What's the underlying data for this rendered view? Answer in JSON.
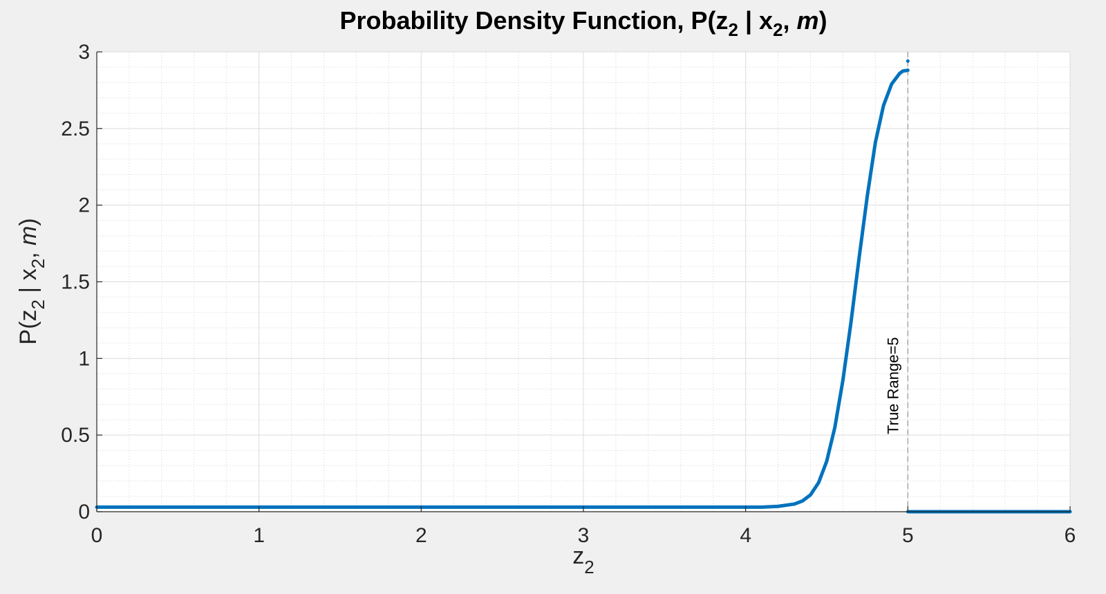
{
  "chart_data": {
    "type": "line",
    "title": {
      "prefix": "Probability Density Function, P(z",
      "sub1": "2",
      "mid": " | x",
      "sub2": "2",
      "comma": ", ",
      "italic": "m",
      "suffix": ")"
    },
    "xlabel": {
      "base": "z",
      "sub": "2"
    },
    "ylabel": {
      "prefix": "P(z",
      "sub1": "2",
      "mid": " | x",
      "sub2": "2",
      "comma": ", ",
      "italic": "m",
      "suffix": ")"
    },
    "xlim": [
      0,
      6
    ],
    "ylim": [
      0,
      3
    ],
    "xticks": [
      0,
      1,
      2,
      3,
      4,
      5,
      6
    ],
    "xtick_labels": [
      "0",
      "1",
      "2",
      "3",
      "4",
      "5",
      "6"
    ],
    "yticks": [
      0,
      0.5,
      1,
      1.5,
      2,
      2.5,
      3
    ],
    "ytick_labels": [
      "0",
      "0.5",
      "1",
      "1.5",
      "2",
      "2.5",
      "3"
    ],
    "grid": true,
    "minor_grid": true,
    "series": [
      {
        "color": "#0072bd",
        "x": [
          0,
          1,
          2,
          3,
          4,
          4.1,
          4.2,
          4.3,
          4.35,
          4.4,
          4.45,
          4.5,
          4.55,
          4.6,
          4.65,
          4.7,
          4.75,
          4.8,
          4.85,
          4.9,
          4.95,
          4.97,
          5.0
        ],
        "y": [
          0.03,
          0.03,
          0.03,
          0.03,
          0.03,
          0.03,
          0.035,
          0.05,
          0.07,
          0.11,
          0.19,
          0.33,
          0.55,
          0.86,
          1.24,
          1.66,
          2.06,
          2.41,
          2.65,
          2.79,
          2.86,
          2.875,
          2.88
        ]
      },
      {
        "color": "#0072bd",
        "x": [
          5.0,
          6.0
        ],
        "y": [
          0,
          0
        ]
      }
    ],
    "markers": [
      {
        "x": 5.0,
        "y": 2.94,
        "color": "#0072bd"
      }
    ],
    "annotations": [
      {
        "type": "vline",
        "x": 5,
        "label": "True Range=5"
      }
    ]
  }
}
